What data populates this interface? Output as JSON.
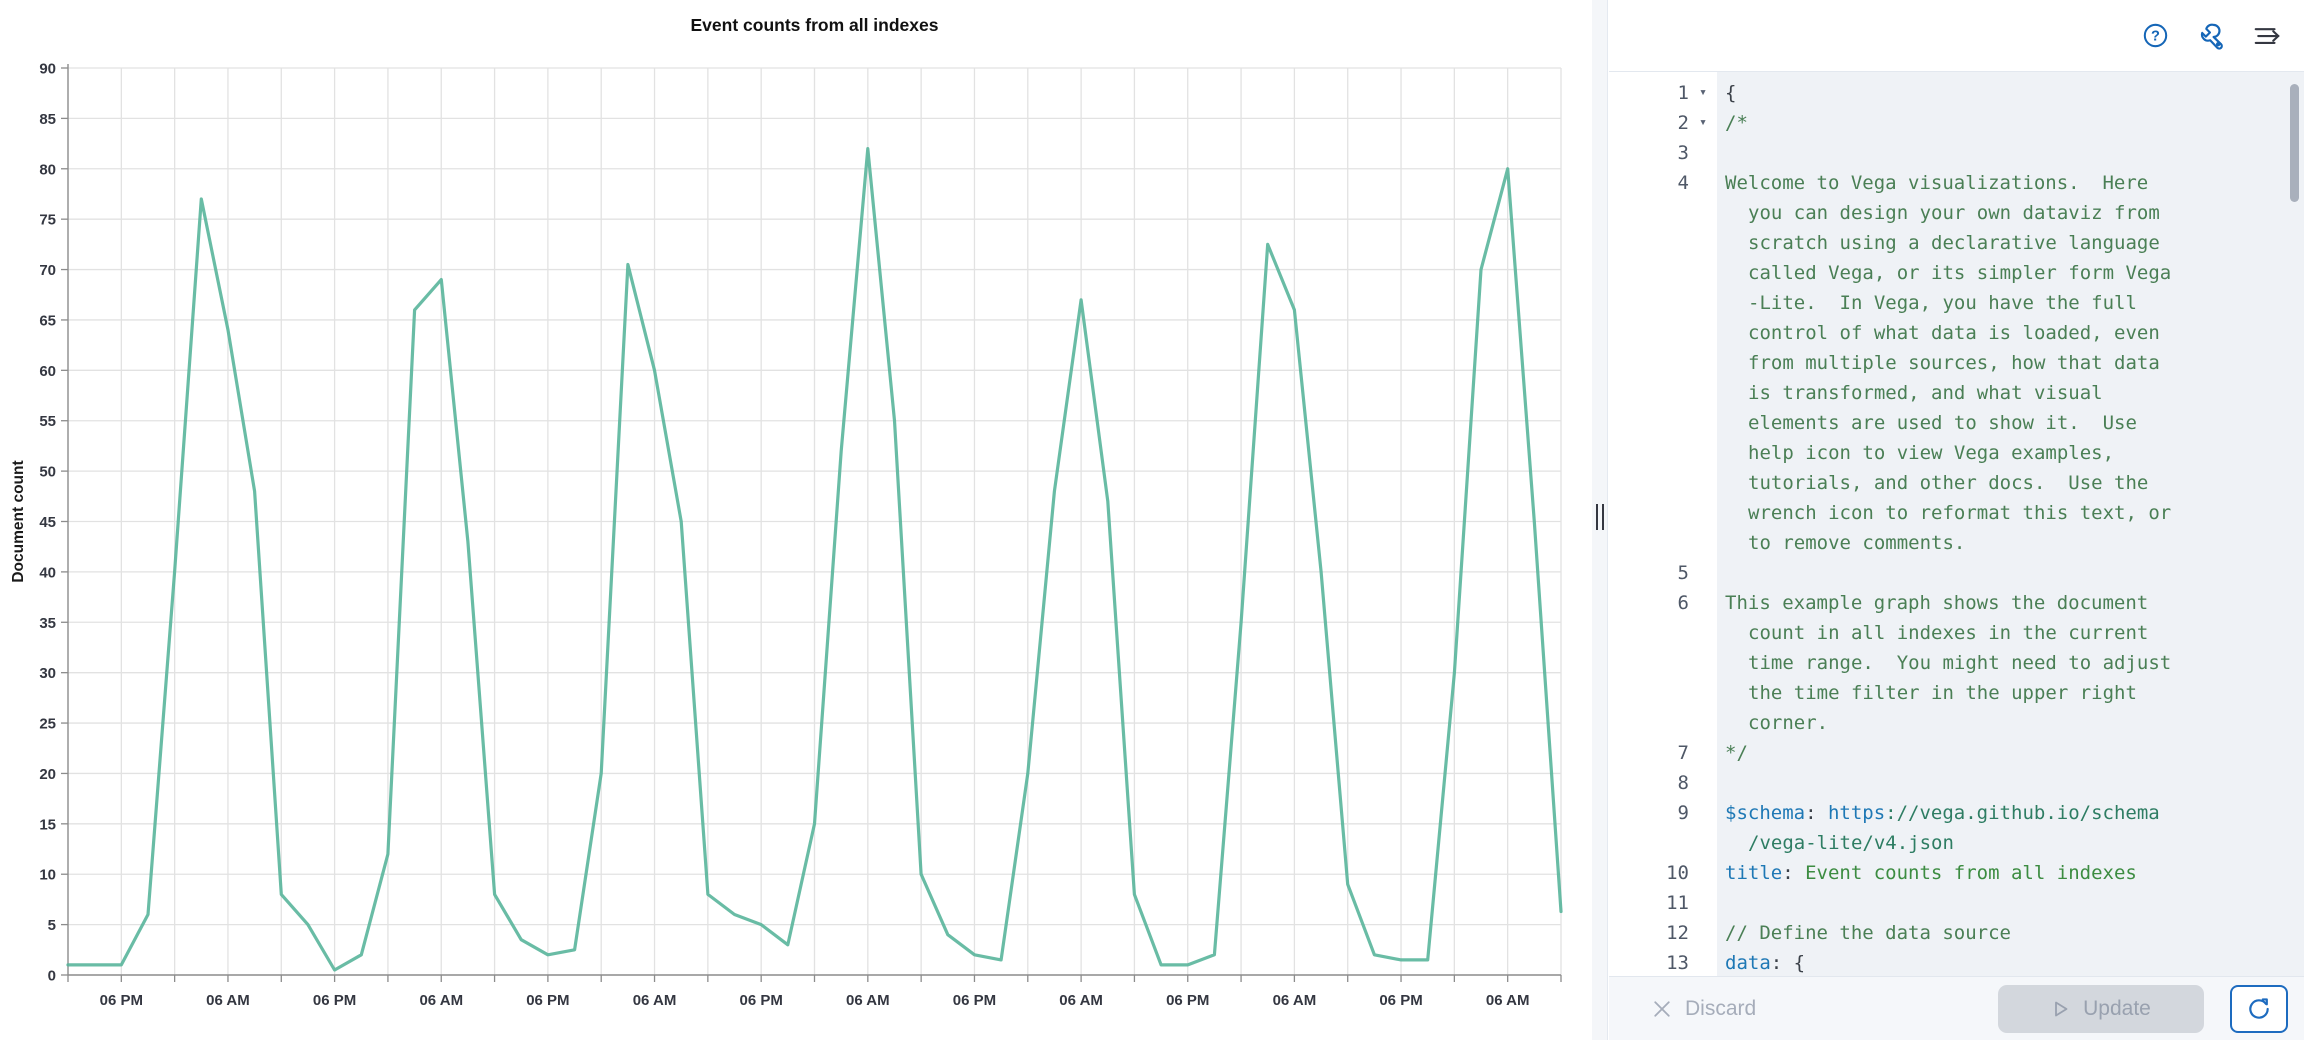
{
  "chart_data": {
    "type": "line",
    "title": "Event counts from all indexes",
    "xlabel": "",
    "ylabel": "Document count",
    "ylim": [
      0,
      90
    ],
    "y_tick_step": 5,
    "x_unit": "3-hour intervals over 7 days",
    "x_tick_labels": [
      "06 PM",
      "06 AM",
      "06 PM",
      "06 AM",
      "06 PM",
      "06 AM",
      "06 PM",
      "06 AM",
      "06 PM",
      "06 AM",
      "06 PM",
      "06 AM",
      "06 PM",
      "06 AM"
    ],
    "x_tick_start_index": 2,
    "x_tick_index_step": 4,
    "x_grid_index_step": 2,
    "grid": true,
    "legend": "none",
    "line_color": "#54B399",
    "values": [
      1,
      1,
      1,
      6,
      40,
      77,
      64,
      48,
      8,
      5,
      0.5,
      2,
      12,
      66,
      69,
      43,
      8,
      3.5,
      2,
      2.5,
      20,
      70.5,
      60,
      45,
      8,
      6,
      5,
      3,
      15,
      52,
      82,
      55,
      10,
      4,
      2,
      1.5,
      20,
      48,
      67,
      47,
      8,
      1,
      1,
      2,
      35,
      72.5,
      66,
      40,
      9,
      2,
      1.5,
      1.5,
      30,
      70,
      80,
      45,
      6.3
    ]
  },
  "toolbar": {
    "icons": [
      "help",
      "wrench",
      "menu-right"
    ]
  },
  "editor": {
    "language": "hjson (Vega-Lite spec)",
    "lines": [
      {
        "n": "1",
        "fold": true,
        "tokens": [
          [
            "p",
            "{"
          ]
        ]
      },
      {
        "n": "2",
        "fold": true,
        "tokens": [
          [
            "c",
            "/*"
          ]
        ]
      },
      {
        "n": "3",
        "tokens": []
      },
      {
        "n": "4",
        "tokens": [
          [
            "c",
            "Welcome to Vega visualizations.  Here"
          ]
        ]
      },
      {
        "wrap": true,
        "tokens": [
          [
            "c",
            "you can design your own dataviz from"
          ]
        ]
      },
      {
        "wrap": true,
        "tokens": [
          [
            "c",
            "scratch using a declarative language"
          ]
        ]
      },
      {
        "wrap": true,
        "tokens": [
          [
            "c",
            "called Vega, or its simpler form Vega"
          ]
        ]
      },
      {
        "wrap": true,
        "tokens": [
          [
            "c",
            "-Lite.  In Vega, you have the full"
          ]
        ]
      },
      {
        "wrap": true,
        "tokens": [
          [
            "c",
            "control of what data is loaded, even"
          ]
        ]
      },
      {
        "wrap": true,
        "tokens": [
          [
            "c",
            "from multiple sources, how that data"
          ]
        ]
      },
      {
        "wrap": true,
        "tokens": [
          [
            "c",
            "is transformed, and what visual"
          ]
        ]
      },
      {
        "wrap": true,
        "tokens": [
          [
            "c",
            "elements are used to show it.  Use"
          ]
        ]
      },
      {
        "wrap": true,
        "tokens": [
          [
            "c",
            "help icon to view Vega examples,"
          ]
        ]
      },
      {
        "wrap": true,
        "tokens": [
          [
            "c",
            "tutorials, and other docs.  Use the"
          ]
        ]
      },
      {
        "wrap": true,
        "tokens": [
          [
            "c",
            "wrench icon to reformat this text, or"
          ]
        ]
      },
      {
        "wrap": true,
        "tokens": [
          [
            "c",
            "to remove comments."
          ]
        ]
      },
      {
        "n": "5",
        "tokens": []
      },
      {
        "n": "6",
        "tokens": [
          [
            "c",
            "This example graph shows the document"
          ]
        ]
      },
      {
        "wrap": true,
        "tokens": [
          [
            "c",
            "count in all indexes in the current"
          ]
        ]
      },
      {
        "wrap": true,
        "tokens": [
          [
            "c",
            "time range.  You might need to adjust"
          ]
        ]
      },
      {
        "wrap": true,
        "tokens": [
          [
            "c",
            "the time filter in the upper right"
          ]
        ]
      },
      {
        "wrap": true,
        "tokens": [
          [
            "c",
            "corner."
          ]
        ]
      },
      {
        "n": "7",
        "tokens": [
          [
            "c",
            "*/"
          ]
        ]
      },
      {
        "n": "8",
        "tokens": []
      },
      {
        "n": "9",
        "tokens": [
          [
            "k",
            "$schema"
          ],
          [
            "p",
            ": "
          ],
          [
            "k",
            "https"
          ],
          [
            "u",
            "://vega.github.io/schema"
          ]
        ]
      },
      {
        "wrap": true,
        "tokens": [
          [
            "u",
            "/vega-lite/v4.json"
          ]
        ]
      },
      {
        "n": "10",
        "tokens": [
          [
            "k",
            "title"
          ],
          [
            "p",
            ": "
          ],
          [
            "s",
            "Event counts from all indexes"
          ]
        ]
      },
      {
        "n": "11",
        "tokens": []
      },
      {
        "n": "12",
        "tokens": [
          [
            "c",
            "// Define the data source"
          ]
        ]
      },
      {
        "n": "13",
        "tokens": [
          [
            "k",
            "data"
          ],
          [
            "p",
            ": {"
          ]
        ]
      }
    ]
  },
  "footer": {
    "discard_label": "Discard",
    "update_label": "Update"
  },
  "colors": {
    "line": "#54B399",
    "grid": "#e2e2e2",
    "axis": "#8c8c8c",
    "label": "#343741",
    "toolbar_icon_blue": "#1566b7",
    "refresh_blue": "#1d6bbf"
  }
}
